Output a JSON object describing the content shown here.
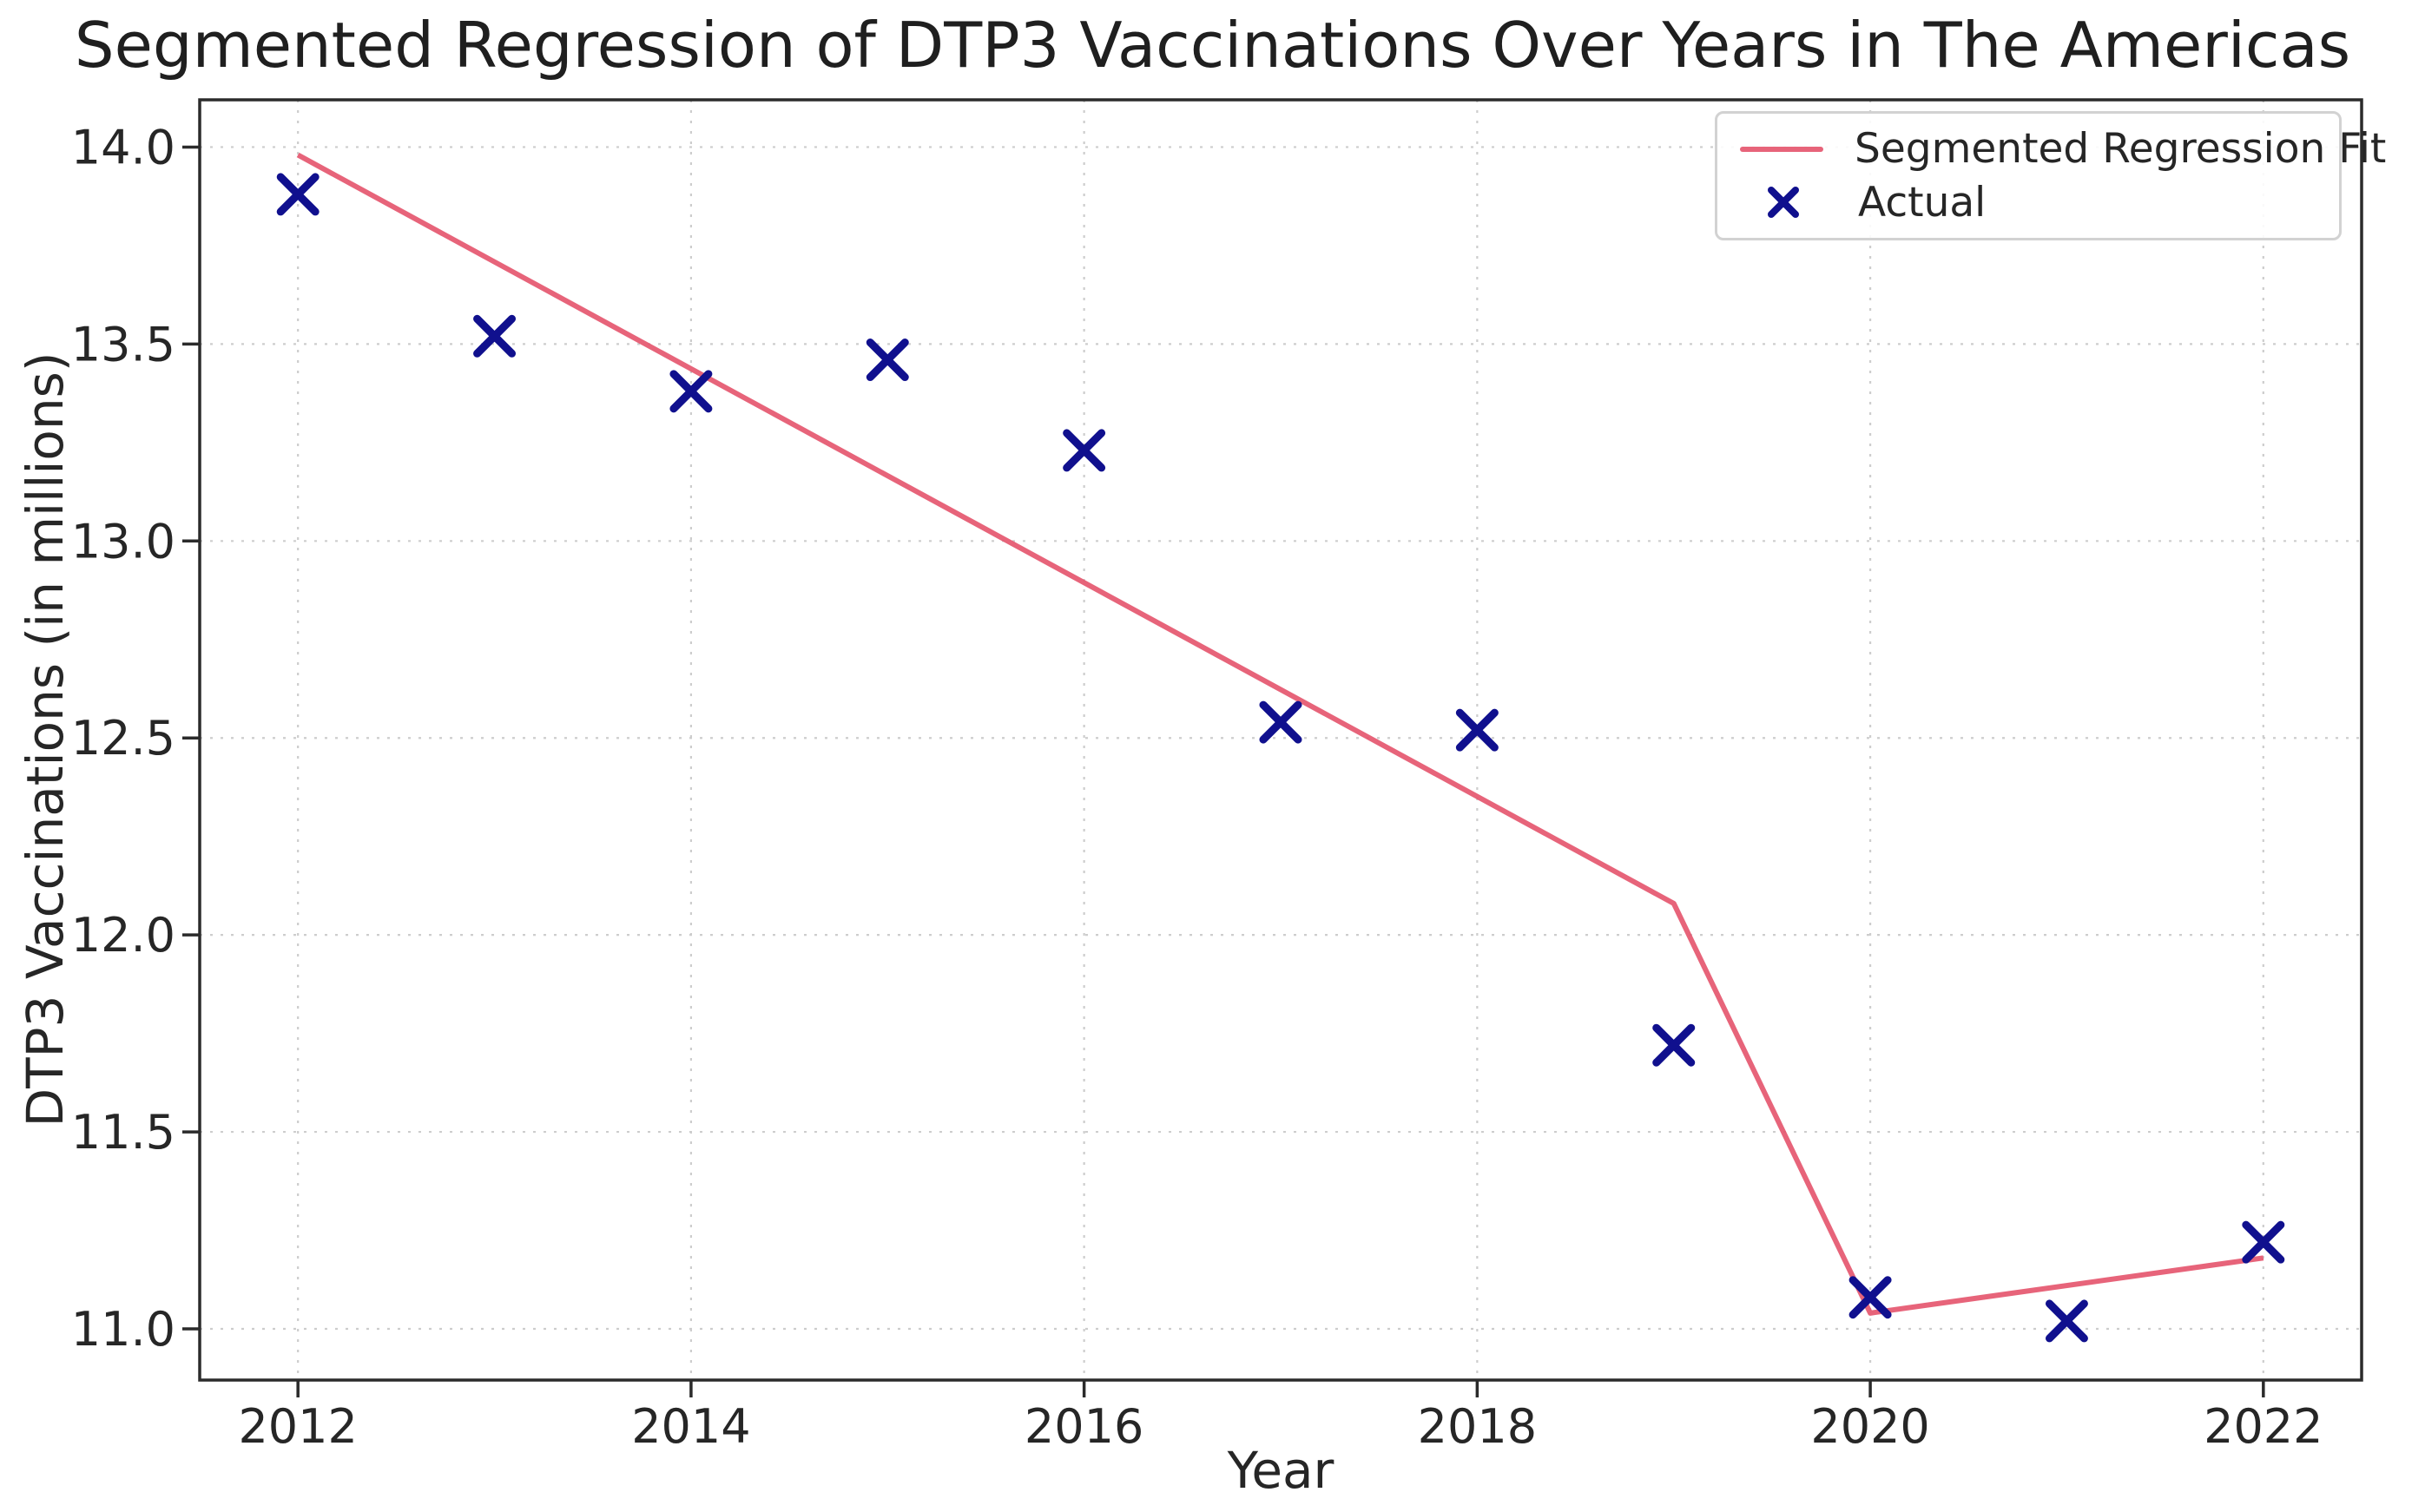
{
  "chart_data": {
    "type": "scatter",
    "title": "Segmented Regression of DTP3 Vaccinations Over Years in The Americas",
    "xlabel": "Year",
    "ylabel": "DTP3 Vaccinations (in millions)",
    "xlim": [
      2011.5,
      2022.5
    ],
    "ylim": [
      10.87,
      14.12
    ],
    "grid": true,
    "xticks": [
      2012,
      2014,
      2016,
      2018,
      2020,
      2022
    ],
    "xtick_labels": [
      "2012",
      "2014",
      "2016",
      "2018",
      "2020",
      "2022"
    ],
    "yticks": [
      11.0,
      11.5,
      12.0,
      12.5,
      13.0,
      13.5,
      14.0
    ],
    "ytick_labels": [
      "11.0",
      "11.5",
      "12.0",
      "12.5",
      "13.0",
      "13.5",
      "14.0"
    ],
    "series": [
      {
        "name": "Actual",
        "type": "scatter",
        "marker": "x",
        "x": [
          2012,
          2013,
          2014,
          2015,
          2016,
          2017,
          2018,
          2019,
          2020,
          2021,
          2022
        ],
        "values": [
          13.88,
          13.52,
          13.38,
          13.46,
          13.23,
          12.54,
          12.52,
          11.72,
          11.08,
          11.02,
          11.22
        ]
      },
      {
        "name": "Segmented Regression Fit",
        "type": "line",
        "x": [
          2012,
          2019,
          2020,
          2022
        ],
        "values": [
          13.98,
          12.08,
          11.04,
          11.18
        ]
      }
    ],
    "legend": [
      {
        "label": "Segmented Regression Fit",
        "type": "line"
      },
      {
        "label": "Actual",
        "type": "x-marker"
      }
    ],
    "legend_position": "upper right",
    "colors": {
      "fit_line": "#e4536b",
      "marker": "#10108e",
      "grid": "#cdcdcd",
      "spine": "#2b2b2b",
      "text": "#262626"
    }
  }
}
